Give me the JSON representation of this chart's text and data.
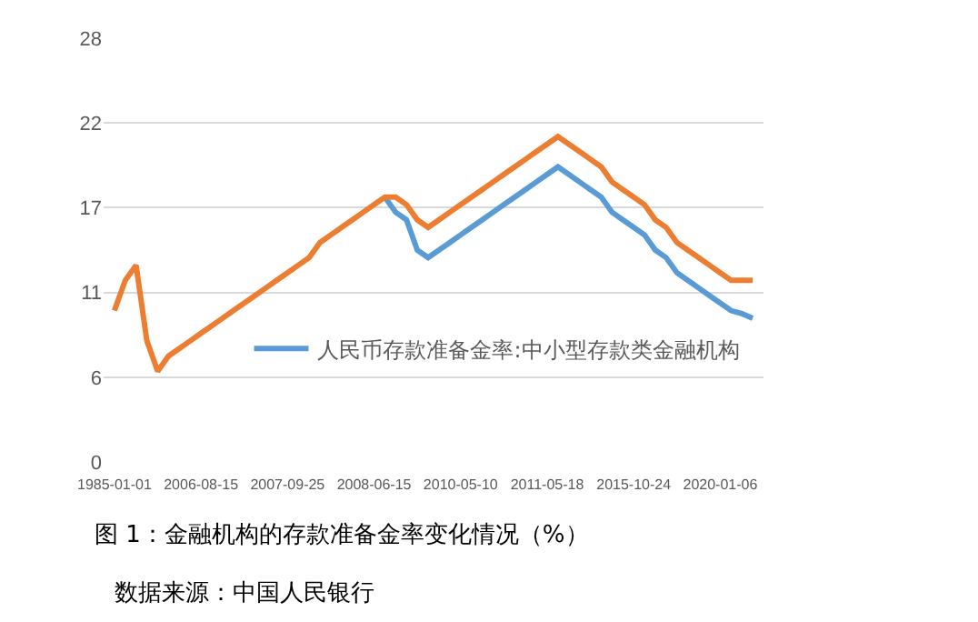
{
  "chart_data": {
    "type": "line",
    "categories": [
      "1985-01-01",
      null,
      null,
      null,
      null,
      null,
      null,
      null,
      "2006-08-15",
      null,
      null,
      null,
      null,
      null,
      null,
      null,
      "2007-09-25",
      null,
      null,
      null,
      null,
      null,
      null,
      null,
      "2008-06-15",
      null,
      null,
      null,
      null,
      null,
      null,
      null,
      "2010-05-10",
      null,
      null,
      null,
      null,
      null,
      null,
      null,
      "2011-05-18",
      null,
      null,
      null,
      null,
      null,
      null,
      null,
      "2015-10-24",
      null,
      null,
      null,
      null,
      null,
      null,
      null,
      "2020-01-06",
      null,
      null,
      null
    ],
    "series": [
      {
        "name": "人民币存款准备金率:中小型存款类金融机构",
        "color": "#5b9bd5",
        "values": [
          null,
          null,
          null,
          null,
          null,
          null,
          null,
          null,
          null,
          null,
          null,
          null,
          null,
          null,
          null,
          null,
          null,
          null,
          null,
          null,
          null,
          null,
          null,
          null,
          null,
          17.5,
          16.5,
          16,
          14,
          13.5,
          14,
          14.5,
          15,
          15.5,
          16,
          16.5,
          17,
          17.5,
          18,
          18.5,
          19,
          19.5,
          19,
          18.5,
          18,
          17.5,
          16.5,
          16,
          15.5,
          15,
          14,
          13.5,
          12.5,
          12,
          11.5,
          11,
          10.5,
          10,
          9.8,
          9.5
        ]
      },
      {
        "color": "#ed7d31",
        "values": [
          10,
          12,
          13,
          8,
          6,
          7,
          7.5,
          8,
          8.5,
          9,
          9.5,
          10,
          10.5,
          11,
          11.5,
          12,
          12.5,
          13,
          13.5,
          14.5,
          15,
          15.5,
          16,
          16.5,
          17,
          17.5,
          17.5,
          17,
          16,
          15.5,
          16,
          16.5,
          17,
          17.5,
          18,
          18.5,
          19,
          19.5,
          20,
          20.5,
          21,
          21.5,
          21,
          20.5,
          20,
          19.5,
          18.5,
          18,
          17.5,
          17,
          16,
          15.5,
          14.5,
          14,
          13.5,
          13,
          12.5,
          12,
          12,
          12
        ]
      }
    ],
    "ylim": [
      0,
      28
    ],
    "yticks": [
      0,
      {
        "value": 5.6,
        "label": "6"
      },
      {
        "value": 11.2,
        "label": "11"
      },
      {
        "value": 16.8,
        "label": "17"
      },
      {
        "value": 22.4,
        "label": "22"
      },
      28
    ],
    "grid": "y",
    "legend": "bottom right",
    "marker": "none",
    "line_style": "solid",
    "annotations": [
      "图 1：金融机构的存款准备金率变化情况（%）",
      "数据来源：中国人民银行"
    ]
  }
}
